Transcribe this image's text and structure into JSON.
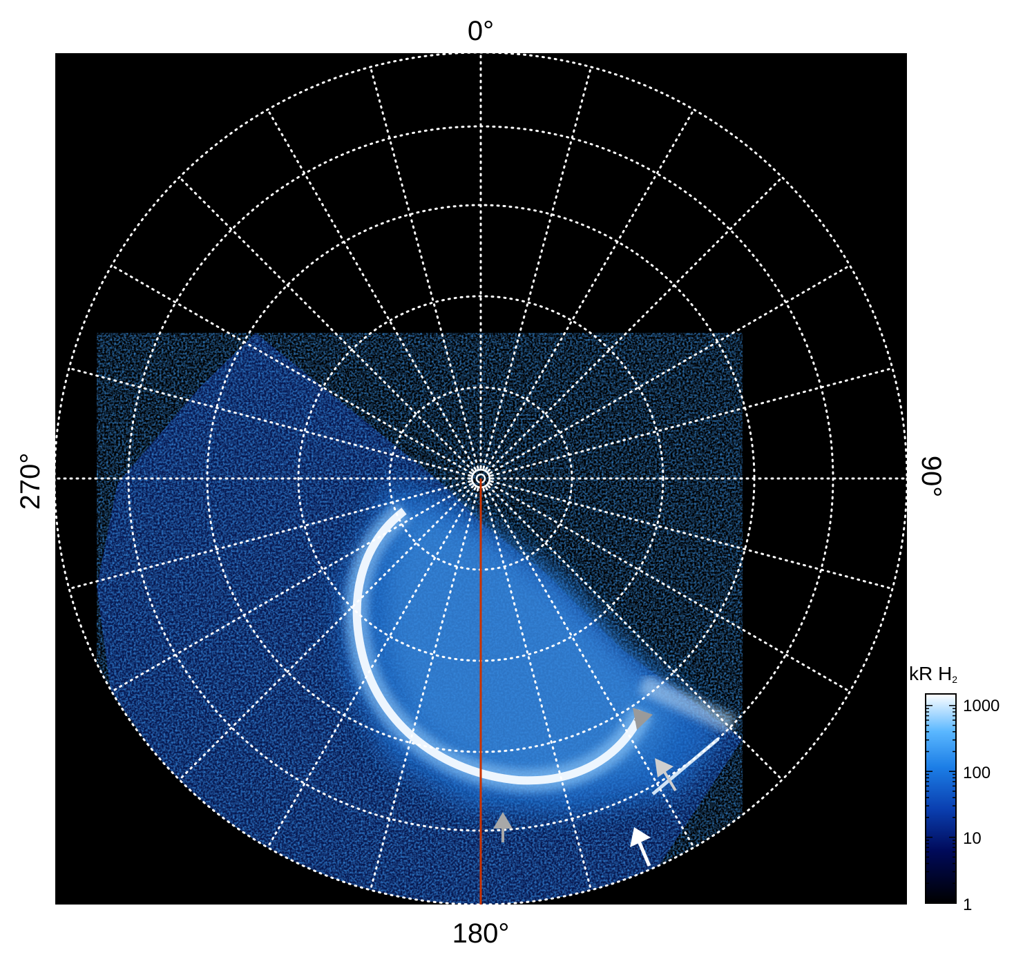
{
  "figure": {
    "labels": {
      "top": "0°",
      "bottom": "180°",
      "left": "270°",
      "right": "90°"
    },
    "colorbar": {
      "title_main": "kR H",
      "title_sub": "2",
      "ticks": [
        "1000",
        "100",
        "10",
        "1"
      ],
      "tick_values": [
        1000,
        100,
        10,
        1
      ],
      "scale": "log",
      "range": [
        1,
        1500
      ]
    },
    "colors": {
      "background": "#000000",
      "grid": "#ffffff",
      "meridian_line": "#cc3300",
      "arrow_white": "#ffffff",
      "arrow_light_gray": "#cfcfcf",
      "arrow_gray": "#9a9a9a",
      "emission_faint": "#0a2a8a",
      "emission_mid": "#1e7fe0",
      "emission_bright": "#cfeaff"
    },
    "icons": [
      "arrow-white",
      "arrow-light-gray",
      "arrow-gray"
    ]
  }
}
